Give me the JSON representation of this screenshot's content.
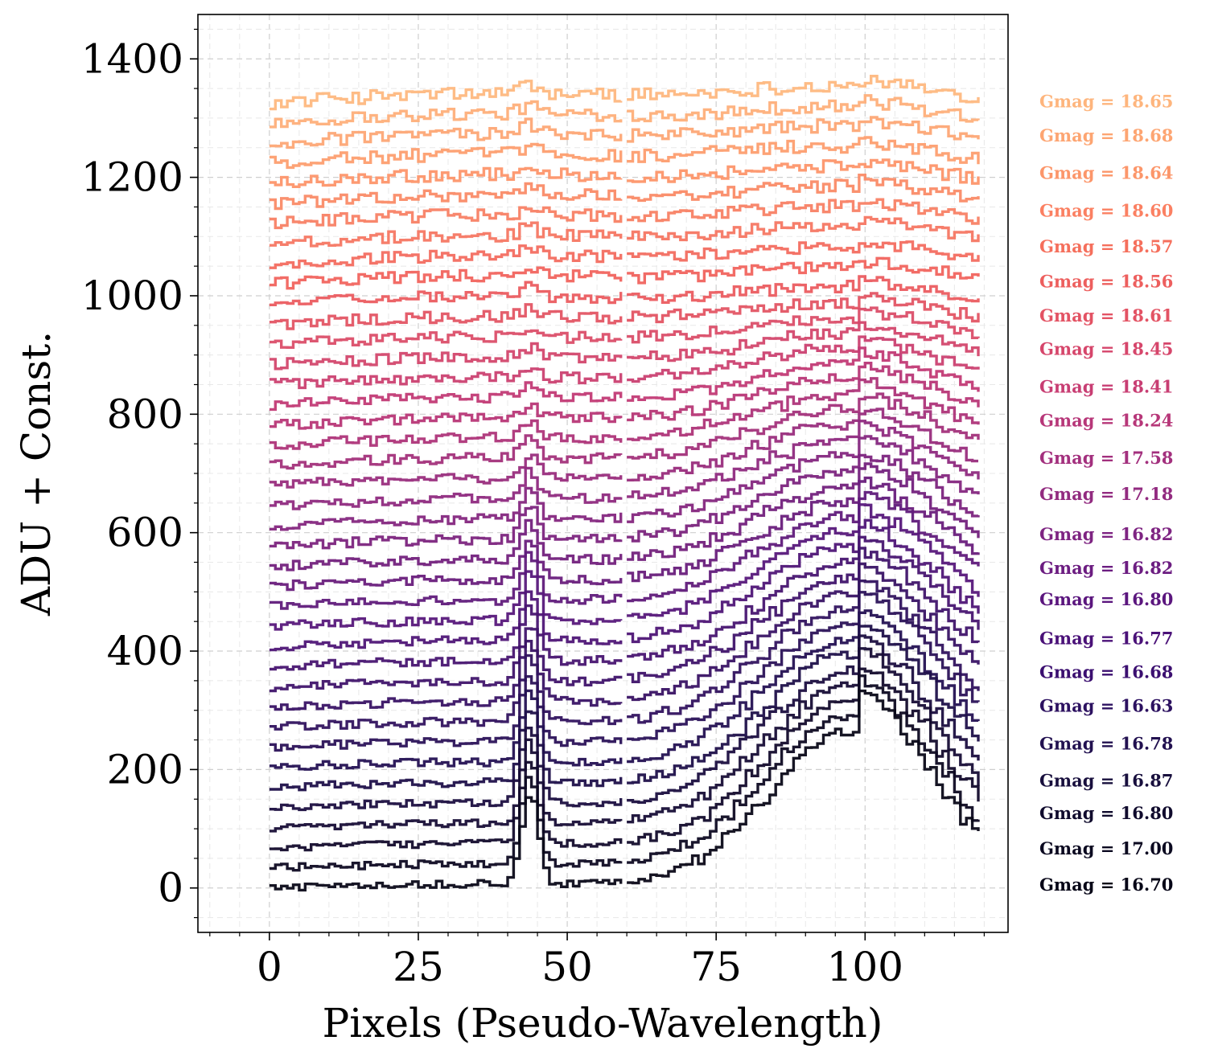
{
  "chart_data": {
    "type": "line",
    "style": "steps",
    "xlabel": "Pixels (Pseudo-Wavelength)",
    "ylabel": "ADU + Const.",
    "xlim": [
      -12,
      124
    ],
    "ylim": [
      -75,
      1475
    ],
    "xticks": [
      0,
      25,
      50,
      75,
      100
    ],
    "yticks": [
      0,
      200,
      400,
      600,
      800,
      1000,
      1200,
      1400
    ],
    "grid": true,
    "grid_style": "dashed",
    "n_spectra": 40,
    "x_range": [
      0,
      119
    ],
    "gap_at_x": 59.5,
    "offset_step": 34,
    "colormap": "magma",
    "colors": {
      "dark": "#0d0a1e",
      "mid_dark": "#2b1361",
      "mid": "#5c1f80",
      "mid_light": "#9e2f7f",
      "pink": "#cf3d73",
      "coral": "#f0605d",
      "light": "#fd9a6a",
      "lightest": "#feb57d"
    },
    "label_lines": [
      {
        "text": "Gmag = 18.65",
        "y_value": 1328,
        "color": "#feb57d"
      },
      {
        "text": "Gmag = 18.68",
        "y_value": 1270,
        "color": "#fda572"
      },
      {
        "text": "Gmag = 18.64",
        "y_value": 1207,
        "color": "#fc966a"
      },
      {
        "text": "Gmag = 18.60",
        "y_value": 1143,
        "color": "#fb8062"
      },
      {
        "text": "Gmag = 18.57",
        "y_value": 1083,
        "color": "#f56f5c"
      },
      {
        "text": "Gmag = 18.56",
        "y_value": 1024,
        "color": "#ed5f5e"
      },
      {
        "text": "Gmag = 18.61",
        "y_value": 966,
        "color": "#e35364"
      },
      {
        "text": "Gmag = 18.45",
        "y_value": 910,
        "color": "#d6466b"
      },
      {
        "text": "Gmag = 18.41",
        "y_value": 846,
        "color": "#c83e73"
      },
      {
        "text": "Gmag = 18.24",
        "y_value": 789,
        "color": "#b73779"
      },
      {
        "text": "Gmag = 17.58",
        "y_value": 726,
        "color": "#a3307e"
      },
      {
        "text": "Gmag = 17.18",
        "y_value": 665,
        "color": "#922b80"
      },
      {
        "text": "Gmag = 16.82",
        "y_value": 597,
        "color": "#7e2482"
      },
      {
        "text": "Gmag = 16.82",
        "y_value": 540,
        "color": "#6c1d81"
      },
      {
        "text": "Gmag = 16.80",
        "y_value": 487,
        "color": "#5b167e"
      },
      {
        "text": "Gmag = 16.77",
        "y_value": 421,
        "color": "#4a1178"
      },
      {
        "text": "Gmag = 16.68",
        "y_value": 364,
        "color": "#3b0f70"
      },
      {
        "text": "Gmag = 16.63",
        "y_value": 307,
        "color": "#2c1160"
      },
      {
        "text": "Gmag = 16.78",
        "y_value": 243,
        "color": "#221150"
      },
      {
        "text": "Gmag = 16.87",
        "y_value": 181,
        "color": "#180f3d"
      },
      {
        "text": "Gmag = 16.80",
        "y_value": 126,
        "color": "#100b2d"
      },
      {
        "text": "Gmag = 17.00",
        "y_value": 66,
        "color": "#0b0920"
      },
      {
        "text": "Gmag = 16.70",
        "y_value": 5,
        "color": "#050416"
      }
    ]
  }
}
